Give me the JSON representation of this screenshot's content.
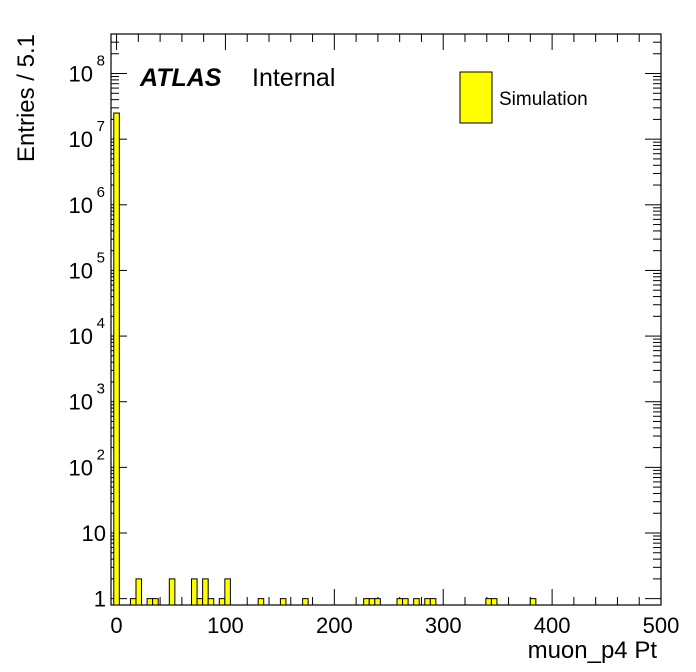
{
  "header": {
    "atlas": "ATLAS",
    "label": "Internal"
  },
  "legend": {
    "entry": "Simulation",
    "fill": "#ffff00",
    "stroke": "#000000"
  },
  "axes": {
    "xlabel": "muon_p4 Pt",
    "ylabel": "Entries / 5.1"
  },
  "chart_data": {
    "type": "bar",
    "histogram": true,
    "xlabel": "muon_p4 Pt",
    "ylabel": "Entries / 5.1",
    "xlim": [
      -5.1,
      500
    ],
    "ylim": [
      0.8,
      400000000
    ],
    "yscale": "log",
    "bin_width": 5.1,
    "x_ticks": [
      0,
      100,
      200,
      300,
      400,
      500
    ],
    "y_ticks": [
      {
        "base": "1",
        "exp": "",
        "value": 1
      },
      {
        "base": "10",
        "exp": "",
        "value": 10
      },
      {
        "base": "10",
        "exp": "2",
        "value": 100
      },
      {
        "base": "10",
        "exp": "3",
        "value": 1000
      },
      {
        "base": "10",
        "exp": "4",
        "value": 10000
      },
      {
        "base": "10",
        "exp": "5",
        "value": 100000
      },
      {
        "base": "10",
        "exp": "6",
        "value": 1000000
      },
      {
        "base": "10",
        "exp": "7",
        "value": 10000000
      },
      {
        "base": "10",
        "exp": "8",
        "value": 100000000
      }
    ],
    "series": [
      {
        "name": "Simulation",
        "color": "#ffff00",
        "bins": [
          {
            "x": 0,
            "value": 25000000
          },
          {
            "x": 15.3,
            "value": 1
          },
          {
            "x": 20.4,
            "value": 2
          },
          {
            "x": 30.6,
            "value": 1
          },
          {
            "x": 35.7,
            "value": 1
          },
          {
            "x": 51,
            "value": 2
          },
          {
            "x": 71.4,
            "value": 2
          },
          {
            "x": 76.5,
            "value": 1
          },
          {
            "x": 81.6,
            "value": 2
          },
          {
            "x": 86.7,
            "value": 1
          },
          {
            "x": 96.9,
            "value": 1
          },
          {
            "x": 102,
            "value": 2
          },
          {
            "x": 132.6,
            "value": 1
          },
          {
            "x": 153,
            "value": 1
          },
          {
            "x": 173.4,
            "value": 1
          },
          {
            "x": 229.5,
            "value": 1
          },
          {
            "x": 234.6,
            "value": 1
          },
          {
            "x": 239.7,
            "value": 1
          },
          {
            "x": 260.1,
            "value": 1
          },
          {
            "x": 265.2,
            "value": 1
          },
          {
            "x": 275.4,
            "value": 1
          },
          {
            "x": 285.6,
            "value": 1
          },
          {
            "x": 290.7,
            "value": 1
          },
          {
            "x": 341.7,
            "value": 1
          },
          {
            "x": 346.8,
            "value": 1
          },
          {
            "x": 382.5,
            "value": 1
          }
        ]
      }
    ]
  }
}
